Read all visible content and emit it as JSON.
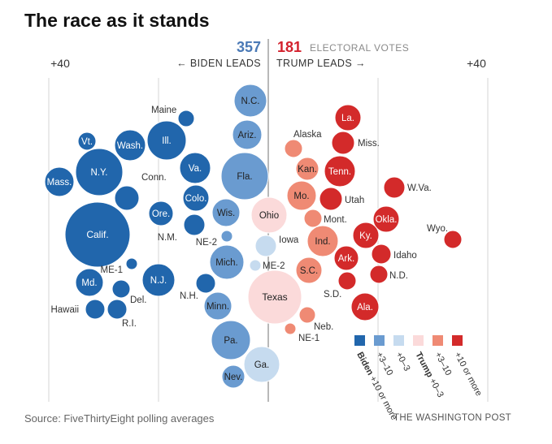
{
  "title": "The race as it stands",
  "header": {
    "biden_ev": "357",
    "trump_ev": "181",
    "ev_label": "ELECTORAL VOTES",
    "left_scale": "+40",
    "right_scale": "+40",
    "biden_leads": "← BIDEN LEADS",
    "trump_leads": "TRUMP LEADS →"
  },
  "footer": {
    "source": "Source: FiveThirtyEight polling averages",
    "brand": "THE WASHINGTON POST"
  },
  "colors": {
    "biden_10": "#2166ac",
    "biden_3_10": "#6a9bd0",
    "biden_0_3": "#c6dbef",
    "trump_0_3": "#fbdada",
    "trump_3_10": "#ef8a74",
    "trump_10": "#d32a2a",
    "biden_text": "#4a79b6",
    "trump_text": "#d3212d"
  },
  "legend": {
    "items": [
      {
        "label": "Biden +10 or more",
        "color_key": "biden_10",
        "bold": "Biden"
      },
      {
        "label": "+3–10",
        "color_key": "biden_3_10"
      },
      {
        "label": "+0–3",
        "color_key": "biden_0_3"
      },
      {
        "label": "Trump +0–3",
        "color_key": "trump_0_3",
        "bold": "Trump"
      },
      {
        "label": "+3–10",
        "color_key": "trump_3_10"
      },
      {
        "label": "+10 or more",
        "color_key": "trump_10"
      }
    ]
  },
  "chart_data": {
    "type": "scatter",
    "x_range": [
      -40,
      40
    ],
    "x_meaning": "polling margin (negative = Biden leads, positive = Trump leads)",
    "size_meaning": "electoral votes",
    "states": [
      {
        "name": "Calif.",
        "margin": -31,
        "ev": 55,
        "cat": "biden_10",
        "label_pos": "in"
      },
      {
        "name": "N.Y.",
        "margin": -30,
        "ev": 29,
        "cat": "biden_10",
        "label_pos": "in"
      },
      {
        "name": "Vt.",
        "margin": -33,
        "ev": 3,
        "cat": "biden_10",
        "label_pos": "in"
      },
      {
        "name": "Mass.",
        "margin": -38,
        "ev": 11,
        "cat": "biden_10",
        "label_pos": "in"
      },
      {
        "name": "Wash.",
        "margin": -24,
        "ev": 12,
        "cat": "biden_10",
        "label_pos": "in"
      },
      {
        "name": "Conn.",
        "margin": -24,
        "ev": 7,
        "cat": "biden_10",
        "label_pos": "above"
      },
      {
        "name": "Md.",
        "margin": -32,
        "ev": 10,
        "cat": "biden_10",
        "label_pos": "in"
      },
      {
        "name": "ME-1",
        "margin": -26,
        "ev": 1,
        "cat": "biden_10",
        "label_pos": "left"
      },
      {
        "name": "Del.",
        "margin": -27,
        "ev": 3,
        "cat": "biden_10",
        "label_pos": "below-right"
      },
      {
        "name": "Hawaii",
        "margin": -32,
        "ev": 4,
        "cat": "biden_10",
        "label_pos": "left"
      },
      {
        "name": "R.I.",
        "margin": -28,
        "ev": 4,
        "cat": "biden_10",
        "label_pos": "below-right"
      },
      {
        "name": "Ill.",
        "margin": -18,
        "ev": 20,
        "cat": "biden_10",
        "label_pos": "in"
      },
      {
        "name": "Maine",
        "margin": -15,
        "ev": 2,
        "cat": "biden_10",
        "label_pos": "above-left"
      },
      {
        "name": "Va.",
        "margin": -13,
        "ev": 13,
        "cat": "biden_10",
        "label_pos": "in"
      },
      {
        "name": "Colo.",
        "margin": -13,
        "ev": 9,
        "cat": "biden_10",
        "label_pos": "in"
      },
      {
        "name": "Ore.",
        "margin": -19,
        "ev": 7,
        "cat": "biden_10",
        "label_pos": "in"
      },
      {
        "name": "N.M.",
        "margin": -13,
        "ev": 5,
        "cat": "biden_10",
        "label_pos": "left"
      },
      {
        "name": "N.J.",
        "margin": -20,
        "ev": 14,
        "cat": "biden_10",
        "label_pos": "in"
      },
      {
        "name": "N.H.",
        "margin": -11,
        "ev": 4,
        "cat": "biden_10",
        "label_pos": "below-left"
      },
      {
        "name": "N.C.",
        "margin": -3,
        "ev": 15,
        "cat": "biden_3_10",
        "label_pos": "in"
      },
      {
        "name": "Ariz.",
        "margin": -4,
        "ev": 11,
        "cat": "biden_3_10",
        "label_pos": "in"
      },
      {
        "name": "Fla.",
        "margin": -4,
        "ev": 29,
        "cat": "biden_3_10",
        "label_pos": "in"
      },
      {
        "name": "Wis.",
        "margin": -7,
        "ev": 10,
        "cat": "biden_3_10",
        "label_pos": "in"
      },
      {
        "name": "NE-2",
        "margin": -7,
        "ev": 1,
        "cat": "biden_3_10",
        "label_pos": "left"
      },
      {
        "name": "Mich.",
        "margin": -7,
        "ev": 16,
        "cat": "biden_3_10",
        "label_pos": "in"
      },
      {
        "name": "Minn.",
        "margin": -9,
        "ev": 10,
        "cat": "biden_3_10",
        "label_pos": "in"
      },
      {
        "name": "Pa.",
        "margin": -7,
        "ev": 20,
        "cat": "biden_3_10",
        "label_pos": "in"
      },
      {
        "name": "Nev.",
        "margin": -7,
        "ev": 6,
        "cat": "biden_3_10",
        "label_pos": "in"
      },
      {
        "name": "Ga.",
        "margin": -1,
        "ev": 16,
        "cat": "biden_0_3",
        "label_pos": "in"
      },
      {
        "name": "Iowa",
        "margin": -0.5,
        "ev": 6,
        "cat": "biden_0_3",
        "label_pos": "right"
      },
      {
        "name": "ME-2",
        "margin": -2,
        "ev": 1,
        "cat": "biden_0_3",
        "label_pos": "right"
      },
      {
        "name": "Ohio",
        "margin": 0.5,
        "ev": 18,
        "cat": "trump_0_3",
        "label_pos": "in"
      },
      {
        "name": "Texas",
        "margin": 0.5,
        "ev": 38,
        "cat": "trump_0_3",
        "label_pos": "in"
      },
      {
        "name": "Alaska",
        "margin": 5,
        "ev": 3,
        "cat": "trump_3_10",
        "label_pos": "above-right"
      },
      {
        "name": "Kan.",
        "margin": 7,
        "ev": 6,
        "cat": "trump_3_10",
        "label_pos": "in"
      },
      {
        "name": "Mo.",
        "margin": 7,
        "ev": 10,
        "cat": "trump_3_10",
        "label_pos": "in"
      },
      {
        "name": "Mont.",
        "margin": 9,
        "ev": 3,
        "cat": "trump_3_10",
        "label_pos": "right"
      },
      {
        "name": "Ind.",
        "margin": 10,
        "ev": 11,
        "cat": "trump_3_10",
        "label_pos": "in"
      },
      {
        "name": "S.C.",
        "margin": 8,
        "ev": 9,
        "cat": "trump_3_10",
        "label_pos": "in"
      },
      {
        "name": "Neb.",
        "margin": 9,
        "ev": 2,
        "cat": "trump_3_10",
        "label_pos": "below-right"
      },
      {
        "name": "NE-1",
        "margin": 4,
        "ev": 1,
        "cat": "trump_3_10",
        "label_pos": "below-right"
      },
      {
        "name": "La.",
        "margin": 15,
        "ev": 8,
        "cat": "trump_10",
        "label_pos": "in"
      },
      {
        "name": "Miss.",
        "margin": 14,
        "ev": 6,
        "cat": "trump_10",
        "label_pos": "right"
      },
      {
        "name": "Tenn.",
        "margin": 14,
        "ev": 11,
        "cat": "trump_10",
        "label_pos": "in"
      },
      {
        "name": "Utah",
        "margin": 12,
        "ev": 6,
        "cat": "trump_10",
        "label_pos": "right"
      },
      {
        "name": "W.Va.",
        "margin": 23,
        "ev": 5,
        "cat": "trump_10",
        "label_pos": "right"
      },
      {
        "name": "Okla.",
        "margin": 21,
        "ev": 7,
        "cat": "trump_10",
        "label_pos": "in"
      },
      {
        "name": "Wyo.",
        "margin": 34,
        "ev": 3,
        "cat": "trump_10",
        "label_pos": "above-left"
      },
      {
        "name": "Ky.",
        "margin": 18,
        "ev": 8,
        "cat": "trump_10",
        "label_pos": "in"
      },
      {
        "name": "Idaho",
        "margin": 21,
        "ev": 4,
        "cat": "trump_10",
        "label_pos": "right"
      },
      {
        "name": "Ark.",
        "margin": 15,
        "ev": 6,
        "cat": "trump_10",
        "label_pos": "in"
      },
      {
        "name": "N.D.",
        "margin": 20,
        "ev": 3,
        "cat": "trump_10",
        "label_pos": "right"
      },
      {
        "name": "S.D.",
        "margin": 14,
        "ev": 3,
        "cat": "trump_10",
        "label_pos": "below-left"
      },
      {
        "name": "Ala.",
        "margin": 18,
        "ev": 9,
        "cat": "trump_10",
        "label_pos": "in"
      }
    ]
  }
}
